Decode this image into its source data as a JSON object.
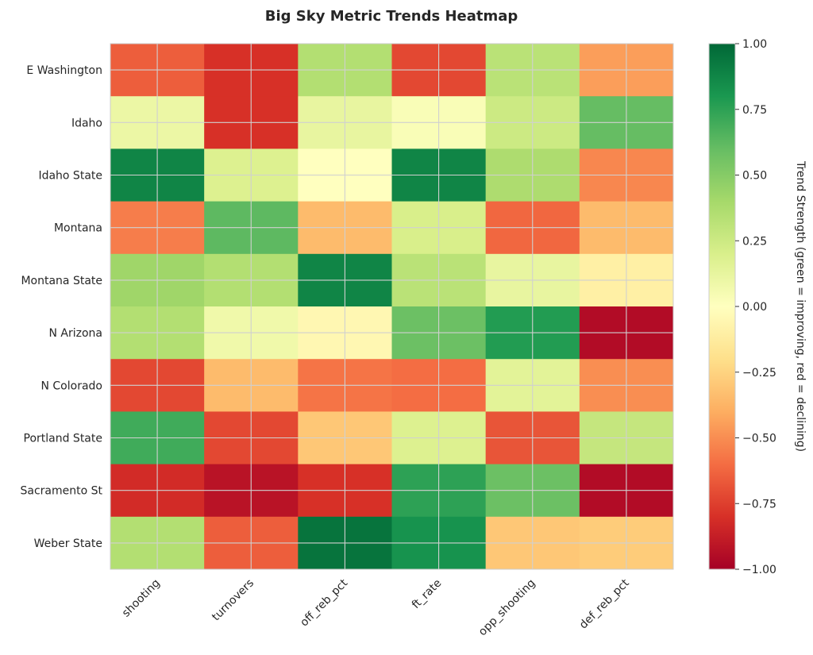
{
  "chart_data": {
    "type": "heatmap",
    "title": "Big Sky Metric Trends Heatmap",
    "rows": [
      "E Washington",
      "Idaho",
      "Idaho State",
      "Montana",
      "Montana State",
      "N Arizona",
      "N Colorado",
      "Portland State",
      "Sacramento St",
      "Weber State"
    ],
    "columns": [
      "shooting",
      "turnovers",
      "off_reb_pct",
      "ft_rate",
      "opp_shooting",
      "def_reb_pct"
    ],
    "values": [
      [
        -0.65,
        -0.8,
        0.35,
        -0.72,
        0.32,
        -0.45
      ],
      [
        0.1,
        -0.8,
        0.12,
        0.03,
        0.25,
        0.6
      ],
      [
        0.88,
        0.18,
        0.0,
        0.88,
        0.37,
        -0.52
      ],
      [
        -0.55,
        0.62,
        -0.35,
        0.2,
        -0.62,
        -0.35
      ],
      [
        0.42,
        0.35,
        0.88,
        0.32,
        0.12,
        -0.1
      ],
      [
        0.35,
        0.08,
        -0.05,
        0.58,
        0.78,
        -0.95
      ],
      [
        -0.72,
        -0.35,
        -0.58,
        -0.6,
        0.15,
        -0.5
      ],
      [
        0.7,
        -0.72,
        -0.3,
        0.18,
        -0.68,
        0.28
      ],
      [
        -0.82,
        -0.92,
        -0.8,
        0.75,
        0.58,
        -0.95
      ],
      [
        0.35,
        -0.65,
        0.95,
        0.82,
        -0.3,
        -0.28
      ]
    ],
    "vmin": -1.0,
    "vmax": 1.0,
    "colormap": "RdYlGn",
    "colorbar": {
      "label": "Trend Strength (green = improving, red = declining)",
      "ticks": [
        "1.00",
        "0.75",
        "0.50",
        "0.25",
        "0.00",
        "−0.25",
        "−0.50",
        "−0.75",
        "−1.00"
      ],
      "tick_values": [
        1.0,
        0.75,
        0.5,
        0.25,
        0.0,
        -0.25,
        -0.5,
        -0.75,
        -1.0
      ]
    },
    "grid": true
  }
}
